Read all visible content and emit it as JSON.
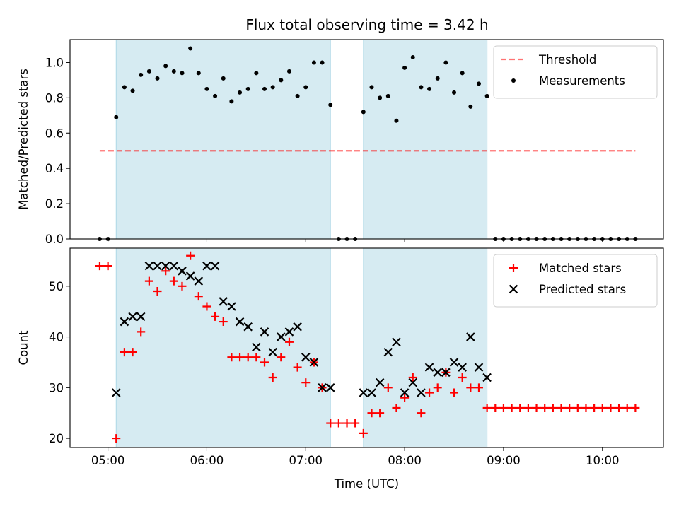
{
  "title": "Flux total observing time = 3.42 h",
  "colors": {
    "shade": "#add8e6",
    "threshold": "#ff0000",
    "measurement": "#000000",
    "matched": "#ff0000",
    "predicted": "#000000"
  },
  "chart_data": [
    {
      "type": "scatter",
      "panel": "top",
      "ylabel": "Matched/Predicted stars",
      "xlim": [
        "04:37",
        "10:37"
      ],
      "ylim": [
        0,
        1.13
      ],
      "x_ticks": [
        "05:00",
        "06:00",
        "07:00",
        "08:00",
        "09:00",
        "10:00"
      ],
      "y_ticks": [
        "0.0",
        "0.2",
        "0.4",
        "0.6",
        "0.8",
        "1.0"
      ],
      "shaded_intervals": [
        [
          "05:05",
          "07:15"
        ],
        [
          "07:35",
          "08:50"
        ]
      ],
      "legend_position": "upper right",
      "threshold": {
        "name": "Threshold",
        "value": 0.5,
        "x_range": [
          "04:55",
          "10:20"
        ],
        "style": "dashed"
      },
      "series": [
        {
          "name": "Measurements",
          "marker": "dot",
          "x": [
            "04:55",
            "05:00",
            "05:05",
            "05:10",
            "05:15",
            "05:20",
            "05:25",
            "05:30",
            "05:35",
            "05:40",
            "05:45",
            "05:50",
            "05:55",
            "06:00",
            "06:05",
            "06:10",
            "06:15",
            "06:20",
            "06:25",
            "06:30",
            "06:35",
            "06:40",
            "06:45",
            "06:50",
            "06:55",
            "07:00",
            "07:05",
            "07:10",
            "07:15",
            "07:20",
            "07:25",
            "07:30",
            "07:35",
            "07:40",
            "07:45",
            "07:50",
            "07:55",
            "08:00",
            "08:05",
            "08:10",
            "08:15",
            "08:20",
            "08:25",
            "08:30",
            "08:35",
            "08:40",
            "08:45",
            "08:50",
            "08:55",
            "09:00",
            "09:05",
            "09:10",
            "09:15",
            "09:20",
            "09:25",
            "09:30",
            "09:35",
            "09:40",
            "09:45",
            "09:50",
            "09:55",
            "10:00",
            "10:05",
            "10:10",
            "10:15",
            "10:20"
          ],
          "y": [
            0,
            0,
            0.69,
            0.86,
            0.84,
            0.93,
            0.95,
            0.91,
            0.98,
            0.95,
            0.94,
            1.08,
            0.94,
            0.85,
            0.81,
            0.91,
            0.78,
            0.83,
            0.85,
            0.94,
            0.85,
            0.86,
            0.9,
            0.95,
            0.81,
            0.86,
            1.0,
            1.0,
            0.76,
            0,
            0,
            0,
            0.72,
            0.86,
            0.8,
            0.81,
            0.67,
            0.97,
            1.03,
            0.86,
            0.85,
            0.91,
            1.0,
            0.83,
            0.94,
            0.75,
            0.88,
            0.81,
            0,
            0,
            0,
            0,
            0,
            0,
            0,
            0,
            0,
            0,
            0,
            0,
            0,
            0,
            0,
            0,
            0,
            0
          ]
        }
      ]
    },
    {
      "type": "scatter",
      "panel": "bottom",
      "xlabel": "Time (UTC)",
      "ylabel": "Count",
      "xlim": [
        "04:37",
        "10:37"
      ],
      "ylim": [
        18.2,
        57.5
      ],
      "x_ticks": [
        "05:00",
        "06:00",
        "07:00",
        "08:00",
        "09:00",
        "10:00"
      ],
      "y_ticks": [
        "20",
        "30",
        "40",
        "50"
      ],
      "shaded_intervals": [
        [
          "05:05",
          "07:15"
        ],
        [
          "07:35",
          "08:50"
        ]
      ],
      "legend_position": "upper right",
      "series": [
        {
          "name": "Matched stars",
          "marker": "plus",
          "x": [
            "04:55",
            "05:00",
            "05:05",
            "05:10",
            "05:15",
            "05:20",
            "05:25",
            "05:30",
            "05:35",
            "05:40",
            "05:45",
            "05:50",
            "05:55",
            "06:00",
            "06:05",
            "06:10",
            "06:15",
            "06:20",
            "06:25",
            "06:30",
            "06:35",
            "06:40",
            "06:45",
            "06:50",
            "06:55",
            "07:00",
            "07:05",
            "07:10",
            "07:15",
            "07:20",
            "07:25",
            "07:30",
            "07:35",
            "07:40",
            "07:45",
            "07:50",
            "07:55",
            "08:00",
            "08:05",
            "08:10",
            "08:15",
            "08:20",
            "08:25",
            "08:30",
            "08:35",
            "08:40",
            "08:45",
            "08:50",
            "08:55",
            "09:00",
            "09:05",
            "09:10",
            "09:15",
            "09:20",
            "09:25",
            "09:30",
            "09:35",
            "09:40",
            "09:45",
            "09:50",
            "09:55",
            "10:00",
            "10:05",
            "10:10",
            "10:15",
            "10:20"
          ],
          "y": [
            54,
            54,
            20,
            37,
            37,
            41,
            51,
            49,
            53,
            51,
            50,
            56,
            48,
            46,
            44,
            43,
            36,
            36,
            36,
            36,
            35,
            32,
            36,
            39,
            34,
            31,
            35,
            30,
            23,
            23,
            23,
            23,
            21,
            25,
            25,
            30,
            26,
            28,
            32,
            25,
            29,
            30,
            33,
            29,
            32,
            30,
            30,
            26,
            26,
            26,
            26,
            26,
            26,
            26,
            26,
            26,
            26,
            26,
            26,
            26,
            26,
            26,
            26,
            26,
            26,
            26
          ]
        },
        {
          "name": "Predicted stars",
          "marker": "x",
          "x": [
            "05:05",
            "05:10",
            "05:15",
            "05:20",
            "05:25",
            "05:30",
            "05:35",
            "05:40",
            "05:45",
            "05:50",
            "05:55",
            "06:00",
            "06:05",
            "06:10",
            "06:15",
            "06:20",
            "06:25",
            "06:30",
            "06:35",
            "06:40",
            "06:45",
            "06:50",
            "06:55",
            "07:00",
            "07:05",
            "07:10",
            "07:15",
            "07:35",
            "07:40",
            "07:45",
            "07:50",
            "07:55",
            "08:00",
            "08:05",
            "08:10",
            "08:15",
            "08:20",
            "08:25",
            "08:30",
            "08:35",
            "08:40",
            "08:45",
            "08:50"
          ],
          "y": [
            29,
            43,
            44,
            44,
            54,
            54,
            54,
            54,
            53,
            52,
            51,
            54,
            54,
            47,
            46,
            43,
            42,
            38,
            41,
            37,
            40,
            41,
            42,
            36,
            35,
            30,
            30,
            29,
            29,
            31,
            37,
            39,
            29,
            31,
            29,
            34,
            33,
            33,
            35,
            34,
            40,
            34,
            32
          ]
        }
      ]
    }
  ]
}
